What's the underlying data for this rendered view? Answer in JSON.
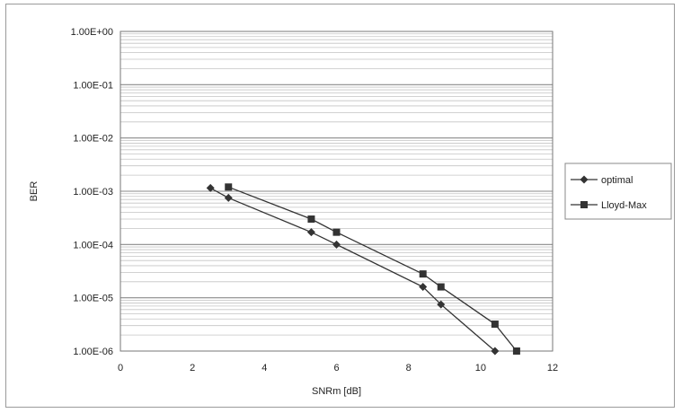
{
  "chart_data": {
    "type": "line",
    "title": "",
    "xlabel": "SNRm [dB]",
    "ylabel": "BER",
    "x_scale": "linear",
    "y_scale": "log",
    "xlim": [
      0,
      12
    ],
    "ylim": [
      1e-06,
      1
    ],
    "x_ticks": [
      0,
      2,
      4,
      6,
      8,
      10,
      12
    ],
    "x_tick_labels": [
      "0",
      "2",
      "4",
      "6",
      "8",
      "10",
      "12"
    ],
    "y_ticks": [
      1,
      0.1,
      0.01,
      0.001,
      0.0001,
      1e-05,
      1e-06
    ],
    "y_tick_labels": [
      "1.00E+00",
      "1.00E-01",
      "1.00E-02",
      "1.00E-03",
      "1.00E-04",
      "1.00E-05",
      "1.00E-06"
    ],
    "grid": "horizontal major and minor",
    "legend_position": "right",
    "series": [
      {
        "name": "optimal",
        "marker": "diamond",
        "color": "#333333",
        "x": [
          2.5,
          3.0,
          5.3,
          6.0,
          8.4,
          8.9,
          10.4
        ],
        "y": [
          0.00115,
          0.00075,
          0.00017,
          0.0001,
          1.6e-05,
          7.5e-06,
          1e-06
        ]
      },
      {
        "name": "Lloyd-Max",
        "marker": "square",
        "color": "#333333",
        "x": [
          3.0,
          5.3,
          6.0,
          8.4,
          8.9,
          10.4,
          11.0
        ],
        "y": [
          0.0012,
          0.0003,
          0.00017,
          2.8e-05,
          1.6e-05,
          3.2e-06,
          1e-06
        ]
      }
    ],
    "legend": [
      "optimal",
      "Lloyd-Max"
    ]
  }
}
